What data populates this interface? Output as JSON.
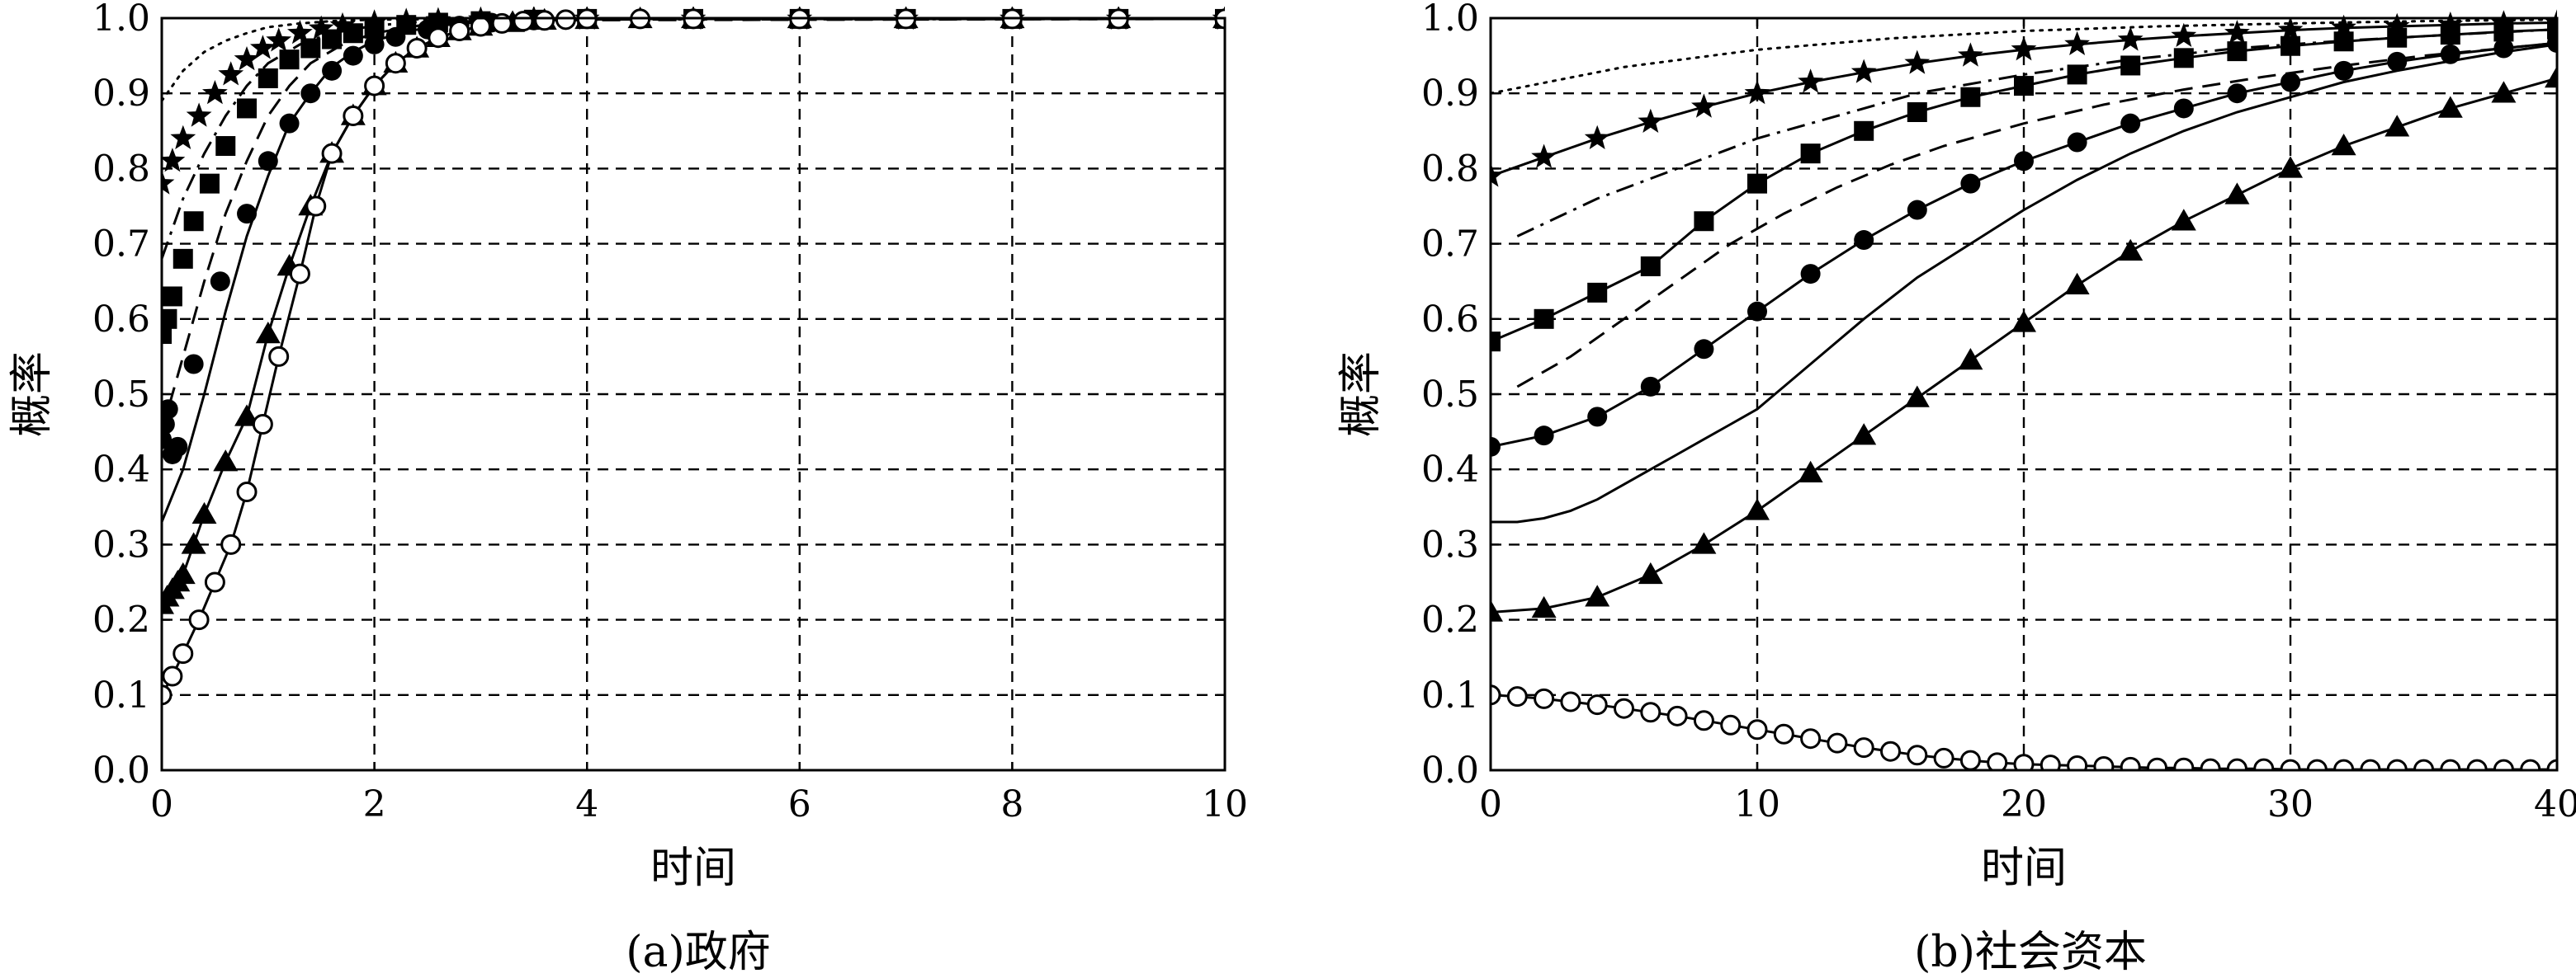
{
  "chart_data": [
    {
      "type": "line",
      "caption": "(a)政府",
      "xlabel": "时间",
      "ylabel": "概率",
      "xlim": [
        0,
        10
      ],
      "ylim": [
        0,
        1
      ],
      "xticks": [
        "0",
        "2",
        "4",
        "6",
        "8",
        "10"
      ],
      "yticks": [
        "0.0",
        "0.1",
        "0.2",
        "0.3",
        "0.4",
        "0.5",
        "0.6",
        "0.7",
        "0.8",
        "0.9",
        "1.0"
      ],
      "grid": true,
      "series": [
        {
          "style": "dotted",
          "marker": "none",
          "x": [
            0,
            0.2,
            0.4,
            0.6,
            0.8,
            1.0,
            1.3,
            1.6,
            2.0,
            3.0,
            10
          ],
          "y": [
            0.89,
            0.93,
            0.955,
            0.97,
            0.98,
            0.988,
            0.993,
            0.996,
            0.998,
            0.999,
            0.999
          ]
        },
        {
          "style": "none",
          "marker": "star",
          "x": [
            0,
            0.1,
            0.2,
            0.35,
            0.5,
            0.65,
            0.8,
            0.95,
            1.1,
            1.3,
            1.5,
            1.7,
            2.0,
            2.3,
            2.6,
            3.0,
            3.5,
            4.0,
            5.0,
            6.0,
            7.0,
            8.0,
            9.0,
            10
          ],
          "y": [
            0.78,
            0.81,
            0.84,
            0.87,
            0.9,
            0.925,
            0.945,
            0.96,
            0.97,
            0.98,
            0.986,
            0.99,
            0.994,
            0.996,
            0.997,
            0.998,
            0.999,
            0.999,
            0.999,
            0.999,
            0.999,
            0.999,
            0.999,
            0.999
          ]
        },
        {
          "style": "dashdot",
          "marker": "none",
          "x": [
            0,
            0.2,
            0.4,
            0.6,
            0.8,
            1.0,
            1.3,
            1.6,
            2.0,
            2.5,
            3.0,
            10
          ],
          "y": [
            0.68,
            0.76,
            0.82,
            0.87,
            0.91,
            0.94,
            0.965,
            0.98,
            0.99,
            0.996,
            0.998,
            0.999
          ]
        },
        {
          "style": "none",
          "marker": "square",
          "x": [
            0,
            0.05,
            0.1,
            0.2,
            0.3,
            0.45,
            0.6,
            0.8,
            1.0,
            1.2,
            1.4,
            1.6,
            1.8,
            2.0,
            2.3,
            2.6,
            3.0,
            3.5,
            4.0,
            5.0,
            6.0,
            7.0,
            8.0,
            9.0,
            10
          ],
          "y": [
            0.58,
            0.6,
            0.63,
            0.68,
            0.73,
            0.78,
            0.83,
            0.88,
            0.92,
            0.945,
            0.96,
            0.972,
            0.98,
            0.986,
            0.991,
            0.994,
            0.996,
            0.998,
            0.999,
            0.999,
            0.999,
            0.999,
            0.999,
            0.999,
            0.999
          ]
        },
        {
          "style": "dashed",
          "marker": "none",
          "x": [
            0,
            0.2,
            0.4,
            0.6,
            0.8,
            1.0,
            1.2,
            1.4,
            1.7,
            2.0,
            2.5,
            3.0,
            10
          ],
          "y": [
            0.45,
            0.55,
            0.65,
            0.74,
            0.81,
            0.87,
            0.91,
            0.94,
            0.965,
            0.98,
            0.992,
            0.997,
            0.999
          ]
        },
        {
          "style": "none",
          "marker": "circle-filled",
          "x": [
            0,
            0.03,
            0.06,
            0.1,
            0.15,
            0.3,
            0.55,
            0.8,
            1.0,
            1.2,
            1.4,
            1.6,
            1.8,
            2.0,
            2.2,
            2.5,
            2.8,
            3.1,
            3.5,
            4.0,
            5.0,
            6.0,
            7.0,
            8.0,
            9.0,
            10
          ],
          "y": [
            0.44,
            0.46,
            0.48,
            0.42,
            0.43,
            0.54,
            0.65,
            0.74,
            0.81,
            0.86,
            0.9,
            0.93,
            0.95,
            0.965,
            0.975,
            0.985,
            0.99,
            0.994,
            0.997,
            0.999,
            0.999,
            0.999,
            0.999,
            0.999,
            0.999,
            0.999
          ]
        },
        {
          "style": "solid",
          "marker": "none",
          "x": [
            0,
            0.2,
            0.4,
            0.6,
            0.8,
            1.0,
            1.2,
            1.4,
            1.6,
            1.8,
            2.0,
            2.3,
            2.6,
            3.0,
            3.5,
            4.0,
            10
          ],
          "y": [
            0.33,
            0.4,
            0.5,
            0.61,
            0.71,
            0.79,
            0.86,
            0.9,
            0.935,
            0.955,
            0.97,
            0.982,
            0.99,
            0.995,
            0.998,
            0.999,
            0.999
          ]
        },
        {
          "style": "solid",
          "marker": "triangle",
          "x": [
            0,
            0.05,
            0.1,
            0.15,
            0.2,
            0.3,
            0.4,
            0.6,
            0.8,
            1.0,
            1.2,
            1.4,
            1.6,
            1.8,
            2.0,
            2.2,
            2.4,
            2.6,
            2.8,
            3.0,
            3.3,
            3.6,
            4.0,
            4.5,
            5.0,
            6.0,
            7.0,
            8.0,
            9.0,
            10
          ],
          "y": [
            0.22,
            0.23,
            0.24,
            0.25,
            0.26,
            0.3,
            0.34,
            0.41,
            0.47,
            0.58,
            0.67,
            0.75,
            0.82,
            0.87,
            0.91,
            0.94,
            0.96,
            0.974,
            0.983,
            0.989,
            0.994,
            0.997,
            0.998,
            0.999,
            0.999,
            0.999,
            0.999,
            0.999,
            0.999,
            0.999
          ]
        },
        {
          "style": "solid",
          "marker": "circle-open",
          "x": [
            0,
            0.1,
            0.2,
            0.35,
            0.5,
            0.65,
            0.8,
            0.95,
            1.1,
            1.3,
            1.45,
            1.6,
            1.8,
            2.0,
            2.2,
            2.4,
            2.6,
            2.8,
            3.0,
            3.2,
            3.4,
            3.6,
            3.8,
            4.0,
            4.5,
            5.0,
            6.0,
            7.0,
            8.0,
            9.0,
            10
          ],
          "y": [
            0.1,
            0.125,
            0.155,
            0.2,
            0.25,
            0.3,
            0.37,
            0.46,
            0.55,
            0.66,
            0.75,
            0.82,
            0.87,
            0.91,
            0.94,
            0.96,
            0.974,
            0.983,
            0.989,
            0.993,
            0.996,
            0.997,
            0.998,
            0.999,
            0.999,
            0.999,
            0.999,
            0.999,
            0.999,
            0.999,
            0.999
          ]
        }
      ]
    },
    {
      "type": "line",
      "caption": "(b)社会资本",
      "xlabel": "时间",
      "ylabel": "概率",
      "xlim": [
        0,
        40
      ],
      "ylim": [
        0,
        1
      ],
      "xticks": [
        "0",
        "10",
        "20",
        "30",
        "40"
      ],
      "yticks": [
        "0.0",
        "0.1",
        "0.2",
        "0.3",
        "0.4",
        "0.5",
        "0.6",
        "0.7",
        "0.8",
        "0.9",
        "1.0"
      ],
      "grid": true,
      "series": [
        {
          "style": "dotted",
          "marker": "none",
          "x": [
            0,
            5,
            10,
            15,
            20,
            25,
            30,
            35,
            40
          ],
          "y": [
            0.9,
            0.935,
            0.958,
            0.973,
            0.983,
            0.989,
            0.993,
            0.996,
            0.998
          ]
        },
        {
          "style": "solid",
          "marker": "star",
          "x": [
            0,
            2,
            4,
            6,
            8,
            10,
            12,
            14,
            16,
            18,
            20,
            22,
            24,
            26,
            28,
            30,
            32,
            34,
            36,
            38,
            40
          ],
          "y": [
            0.79,
            0.815,
            0.84,
            0.862,
            0.882,
            0.9,
            0.915,
            0.928,
            0.94,
            0.95,
            0.958,
            0.965,
            0.971,
            0.976,
            0.98,
            0.984,
            0.987,
            0.989,
            0.991,
            0.993,
            0.994
          ]
        },
        {
          "style": "dashdot",
          "marker": "none",
          "x": [
            1,
            4,
            7,
            10,
            13,
            16,
            20,
            24,
            28,
            32,
            36,
            40
          ],
          "y": [
            0.71,
            0.76,
            0.8,
            0.84,
            0.87,
            0.9,
            0.925,
            0.945,
            0.96,
            0.97,
            0.978,
            0.985
          ]
        },
        {
          "style": "solid",
          "marker": "square",
          "x": [
            0,
            2,
            4,
            6,
            8,
            10,
            12,
            14,
            16,
            18,
            20,
            22,
            24,
            26,
            28,
            30,
            32,
            34,
            36,
            38,
            40
          ],
          "y": [
            0.57,
            0.6,
            0.635,
            0.67,
            0.73,
            0.78,
            0.82,
            0.85,
            0.875,
            0.895,
            0.91,
            0.925,
            0.937,
            0.947,
            0.956,
            0.963,
            0.969,
            0.974,
            0.978,
            0.982,
            0.985
          ]
        },
        {
          "style": "dashed",
          "marker": "none",
          "x": [
            1,
            3,
            5,
            7,
            9,
            11,
            13,
            15,
            17,
            20,
            23,
            26,
            29,
            32,
            35,
            38,
            40
          ],
          "y": [
            0.51,
            0.55,
            0.6,
            0.65,
            0.7,
            0.74,
            0.775,
            0.805,
            0.83,
            0.86,
            0.885,
            0.905,
            0.922,
            0.937,
            0.95,
            0.96,
            0.967
          ]
        },
        {
          "style": "solid",
          "marker": "circle-filled",
          "x": [
            0,
            2,
            4,
            6,
            8,
            10,
            12,
            14,
            16,
            18,
            20,
            22,
            24,
            26,
            28,
            30,
            32,
            34,
            36,
            38,
            40
          ],
          "y": [
            0.43,
            0.445,
            0.47,
            0.51,
            0.56,
            0.61,
            0.66,
            0.705,
            0.745,
            0.78,
            0.81,
            0.835,
            0.86,
            0.88,
            0.9,
            0.915,
            0.93,
            0.942,
            0.952,
            0.96,
            0.967
          ]
        },
        {
          "style": "solid",
          "marker": "none",
          "x": [
            0,
            1,
            2,
            3,
            4,
            5,
            6,
            7,
            8,
            9,
            10,
            12,
            14,
            16,
            18,
            20,
            22,
            24,
            26,
            28,
            30,
            32,
            34,
            36,
            38,
            40
          ],
          "y": [
            0.33,
            0.33,
            0.335,
            0.345,
            0.36,
            0.38,
            0.4,
            0.42,
            0.44,
            0.46,
            0.48,
            0.54,
            0.6,
            0.655,
            0.7,
            0.745,
            0.785,
            0.82,
            0.85,
            0.875,
            0.895,
            0.915,
            0.93,
            0.943,
            0.955,
            0.965
          ]
        },
        {
          "style": "solid",
          "marker": "triangle",
          "x": [
            0,
            2,
            4,
            6,
            8,
            10,
            12,
            14,
            16,
            18,
            20,
            22,
            24,
            26,
            28,
            30,
            32,
            34,
            36,
            38,
            40
          ],
          "y": [
            0.21,
            0.215,
            0.23,
            0.26,
            0.3,
            0.345,
            0.395,
            0.445,
            0.495,
            0.545,
            0.595,
            0.645,
            0.69,
            0.73,
            0.765,
            0.8,
            0.83,
            0.855,
            0.88,
            0.9,
            0.92
          ]
        },
        {
          "style": "solid",
          "marker": "circle-open",
          "x": [
            0,
            1,
            2,
            3,
            4,
            5,
            6,
            7,
            8,
            9,
            10,
            11,
            12,
            13,
            14,
            15,
            16,
            17,
            18,
            19,
            20,
            21,
            22,
            23,
            24,
            25,
            26,
            27,
            28,
            29,
            30,
            31,
            32,
            33,
            34,
            35,
            36,
            37,
            38,
            39,
            40
          ],
          "y": [
            0.1,
            0.098,
            0.095,
            0.091,
            0.087,
            0.082,
            0.077,
            0.072,
            0.066,
            0.06,
            0.054,
            0.048,
            0.042,
            0.036,
            0.03,
            0.025,
            0.02,
            0.016,
            0.013,
            0.01,
            0.008,
            0.007,
            0.006,
            0.005,
            0.004,
            0.003,
            0.003,
            0.002,
            0.002,
            0.002,
            0.001,
            0.001,
            0.001,
            0.001,
            0.001,
            0.001,
            0.001,
            0.001,
            0.001,
            0.001,
            0.001
          ]
        }
      ]
    }
  ]
}
